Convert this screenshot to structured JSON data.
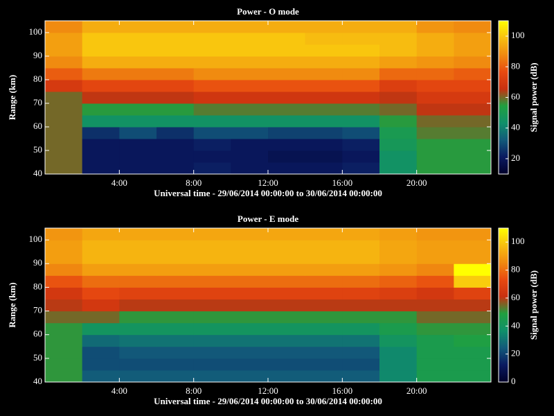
{
  "chart_data": [
    {
      "type": "heatmap",
      "title": "Power - O mode",
      "xlabel": "Universal time - 29/06/2014 00:00:00 to 30/06/2014 00:00:00",
      "ylabel": "Range (km)",
      "colorbar_label": "Signal power (dB)",
      "x_edges": [
        0,
        2,
        4,
        6,
        8,
        10,
        12,
        14,
        16,
        18,
        20,
        22,
        24
      ],
      "y_edges": [
        40,
        45,
        50,
        55,
        60,
        65,
        70,
        75,
        80,
        85,
        90,
        95,
        100,
        105
      ],
      "xlim": [
        0,
        24
      ],
      "ylim": [
        40,
        105
      ],
      "xticks": [
        {
          "value": 4,
          "label": "4:00"
        },
        {
          "value": 8,
          "label": "8:00"
        },
        {
          "value": 12,
          "label": "12:00"
        },
        {
          "value": 16,
          "label": "16:00"
        },
        {
          "value": 20,
          "label": "20:00"
        }
      ],
      "yticks": [
        40,
        50,
        60,
        70,
        80,
        90,
        100
      ],
      "zlim": [
        10,
        110
      ],
      "zticks": [
        20,
        40,
        60,
        80,
        100
      ],
      "colorscale": [
        "#00002a",
        "#0a1a60",
        "#125a7a",
        "#10906a",
        "#20a040",
        "#c83010",
        "#e84a10",
        "#f08a10",
        "#f8c010",
        "#ffff00"
      ],
      "z": [
        [
          60,
          20,
          20,
          20,
          22,
          20,
          20,
          20,
          22,
          45,
          55,
          55
        ],
        [
          60,
          20,
          20,
          20,
          20,
          20,
          18,
          18,
          20,
          45,
          55,
          55
        ],
        [
          60,
          20,
          20,
          20,
          22,
          20,
          20,
          20,
          22,
          48,
          55,
          55
        ],
        [
          60,
          25,
          30,
          25,
          30,
          30,
          28,
          28,
          30,
          50,
          58,
          58
        ],
        [
          60,
          45,
          45,
          45,
          45,
          45,
          45,
          45,
          45,
          55,
          60,
          60
        ],
        [
          60,
          55,
          55,
          55,
          58,
          58,
          58,
          58,
          58,
          60,
          65,
          65
        ],
        [
          60,
          65,
          65,
          65,
          68,
          68,
          68,
          68,
          68,
          65,
          70,
          70
        ],
        [
          70,
          75,
          75,
          75,
          78,
          78,
          78,
          78,
          78,
          72,
          75,
          75
        ],
        [
          80,
          85,
          85,
          85,
          88,
          88,
          88,
          88,
          88,
          82,
          82,
          80
        ],
        [
          88,
          95,
          95,
          95,
          95,
          95,
          95,
          95,
          95,
          92,
          90,
          88
        ],
        [
          92,
          100,
          100,
          100,
          100,
          100,
          100,
          100,
          100,
          98,
          95,
          92
        ],
        [
          92,
          100,
          100,
          100,
          100,
          100,
          100,
          98,
          98,
          98,
          95,
          92
        ],
        [
          88,
          95,
          95,
          95,
          95,
          95,
          95,
          95,
          95,
          95,
          90,
          88
        ]
      ]
    },
    {
      "type": "heatmap",
      "title": "Power - E mode",
      "xlabel": "Universal time - 29/06/2014 00:00:00 to 30/06/2014 00:00:00",
      "ylabel": "Range (km)",
      "colorbar_label": "Signal power (dB)",
      "x_edges": [
        0,
        2,
        4,
        6,
        8,
        10,
        12,
        14,
        16,
        18,
        20,
        22,
        24
      ],
      "y_edges": [
        40,
        45,
        50,
        55,
        60,
        65,
        70,
        75,
        80,
        85,
        90,
        95,
        100,
        105
      ],
      "xlim": [
        0,
        24
      ],
      "ylim": [
        40,
        105
      ],
      "xticks": [
        {
          "value": 4,
          "label": "4:00"
        },
        {
          "value": 8,
          "label": "8:00"
        },
        {
          "value": 12,
          "label": "12:00"
        },
        {
          "value": 16,
          "label": "16:00"
        },
        {
          "value": 20,
          "label": "20:00"
        }
      ],
      "yticks": [
        40,
        50,
        60,
        70,
        80,
        90,
        100
      ],
      "zlim": [
        0,
        110
      ],
      "zticks": [
        0,
        20,
        40,
        60,
        80,
        100
      ],
      "colorscale": [
        "#00002a",
        "#0a1a60",
        "#125a7a",
        "#10906a",
        "#20a040",
        "#c83010",
        "#e84a10",
        "#f08a10",
        "#f8c010",
        "#ffff00"
      ],
      "z": [
        [
          50,
          25,
          25,
          25,
          25,
          25,
          25,
          25,
          25,
          35,
          45,
          45
        ],
        [
          50,
          22,
          22,
          22,
          22,
          22,
          22,
          22,
          22,
          35,
          45,
          45
        ],
        [
          50,
          22,
          24,
          24,
          24,
          24,
          24,
          24,
          24,
          35,
          45,
          45
        ],
        [
          50,
          28,
          30,
          30,
          30,
          30,
          30,
          30,
          30,
          40,
          45,
          48
        ],
        [
          50,
          40,
          40,
          40,
          40,
          40,
          40,
          40,
          40,
          45,
          50,
          50
        ],
        [
          55,
          55,
          50,
          50,
          50,
          50,
          50,
          50,
          50,
          50,
          55,
          55
        ],
        [
          60,
          65,
          60,
          60,
          60,
          60,
          60,
          60,
          60,
          60,
          60,
          60
        ],
        [
          65,
          72,
          70,
          70,
          70,
          70,
          70,
          70,
          70,
          68,
          65,
          70
        ],
        [
          75,
          80,
          80,
          80,
          80,
          80,
          80,
          80,
          80,
          78,
          75,
          100
        ],
        [
          85,
          90,
          90,
          90,
          90,
          90,
          90,
          90,
          90,
          88,
          85,
          110
        ],
        [
          90,
          95,
          95,
          95,
          95,
          95,
          95,
          95,
          95,
          92,
          90,
          90
        ],
        [
          90,
          95,
          95,
          95,
          95,
          95,
          95,
          95,
          95,
          92,
          90,
          90
        ],
        [
          88,
          92,
          92,
          92,
          92,
          92,
          92,
          92,
          92,
          90,
          88,
          88
        ]
      ]
    }
  ]
}
